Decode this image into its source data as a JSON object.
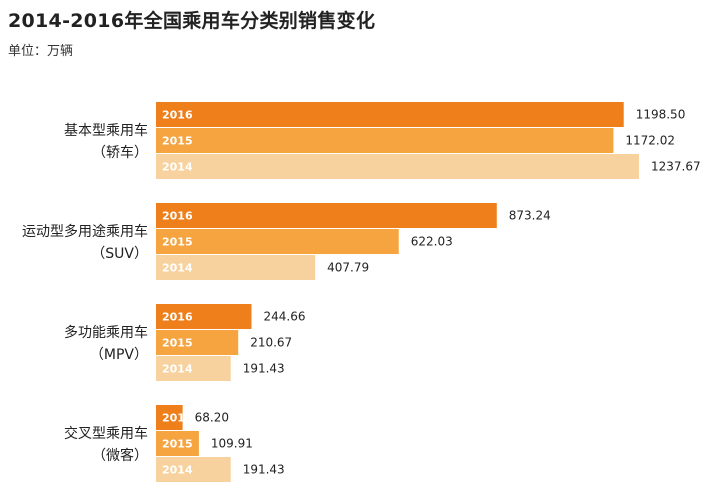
{
  "title": "2014-2016年全国乘用车分类别销售变化",
  "unit": "单位：万辆",
  "colors": {
    "2016": "#ee7f1a",
    "2015": "#f5a440",
    "2014": "#f8d29e"
  },
  "chart_data": {
    "type": "bar",
    "orientation": "horizontal",
    "title": "2014-2016年全国乘用车分类别销售变化",
    "unit": "单位：万辆",
    "categories": [
      {
        "line1": "基本型乘用车",
        "line2": "（轿车）"
      },
      {
        "line1": "运动型多用途乘用车",
        "line2": "（SUV）"
      },
      {
        "line1": "多功能乘用车",
        "line2": "（MPV）"
      },
      {
        "line1": "交叉型乘用车",
        "line2": "（微客）"
      }
    ],
    "series": [
      {
        "name": "2016",
        "values": [
          1198.5,
          873.24,
          244.66,
          68.2
        ],
        "labels": [
          "1198.50",
          "873.24",
          "244.66",
          "68.20"
        ]
      },
      {
        "name": "2015",
        "values": [
          1172.02,
          622.03,
          210.67,
          109.91
        ],
        "labels": [
          "1172.02",
          "622.03",
          "210.67",
          "109.91"
        ]
      },
      {
        "name": "2014",
        "values": [
          1237.67,
          407.79,
          191.43,
          191.43
        ],
        "labels": [
          "1237.67",
          "407.79",
          "191.43",
          "191.43"
        ]
      }
    ]
  }
}
